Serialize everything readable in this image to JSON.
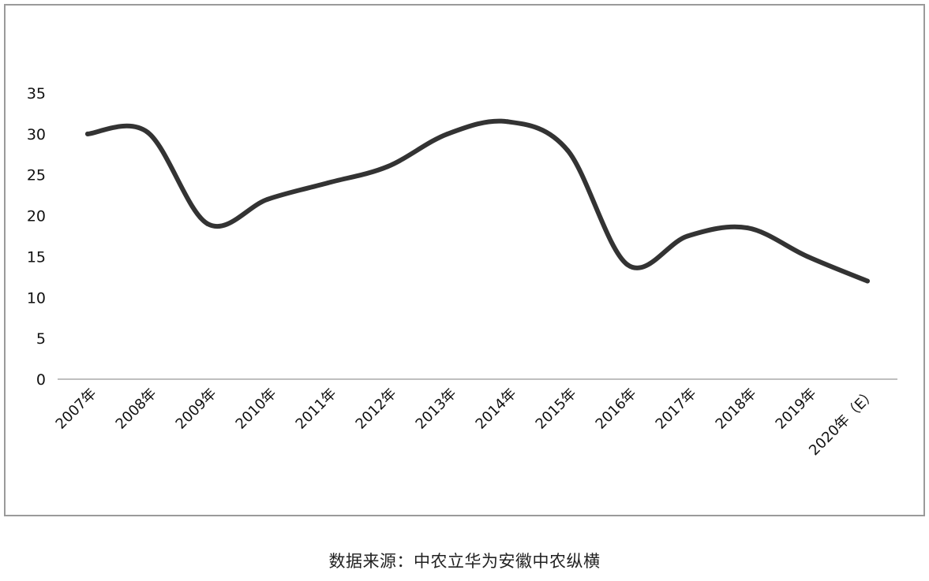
{
  "chart_data": {
    "type": "line",
    "title": "",
    "xlabel": "",
    "ylabel": "",
    "categories": [
      "2007年",
      "2008年",
      "2009年",
      "2010年",
      "2011年",
      "2012年",
      "2013年",
      "2014年",
      "2015年",
      "2016年",
      "2017年",
      "2018年",
      "2019年",
      "2020年（E）"
    ],
    "series": [
      {
        "name": "",
        "values": [
          30,
          30.2,
          19,
          22,
          24,
          26,
          30,
          31.5,
          28,
          14,
          17.5,
          18.5,
          15,
          12
        ],
        "color": "#333333"
      }
    ],
    "yticks": [
      0,
      5,
      10,
      15,
      20,
      25,
      30,
      35
    ],
    "ylim": [
      0,
      35
    ],
    "grid": false,
    "legend": "none"
  },
  "source": "数据来源：中农立华为安徽中农纵横"
}
